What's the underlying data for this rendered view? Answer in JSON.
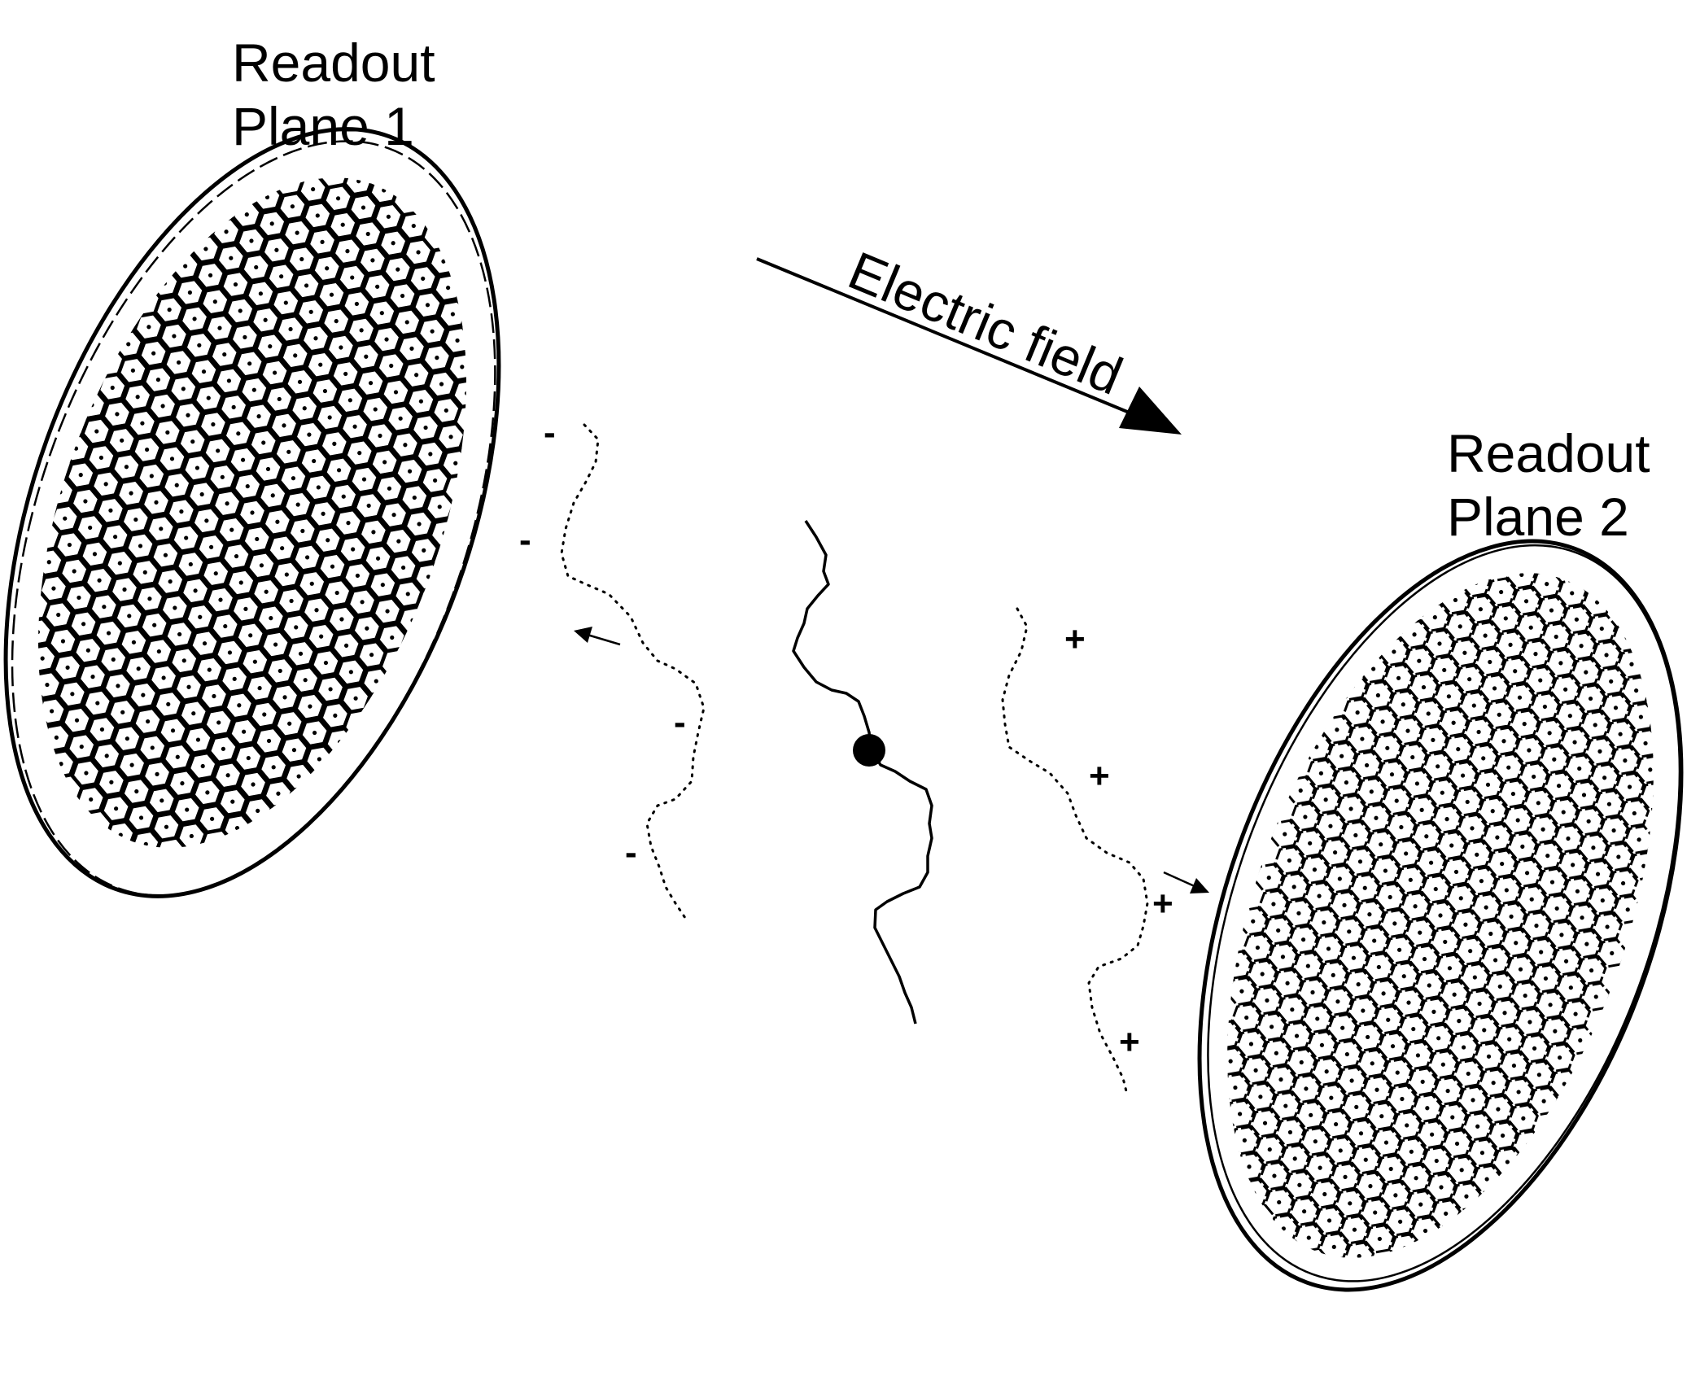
{
  "labels": {
    "plane1_line1": "Readout",
    "plane1_line2": "Plane 1",
    "plane2_line1": "Readout",
    "plane2_line2": "Plane 2",
    "field": "Electric field"
  },
  "charges": {
    "negative": "-",
    "positive": "+"
  },
  "colors": {
    "ink": "#000000",
    "background": "#ffffff"
  }
}
